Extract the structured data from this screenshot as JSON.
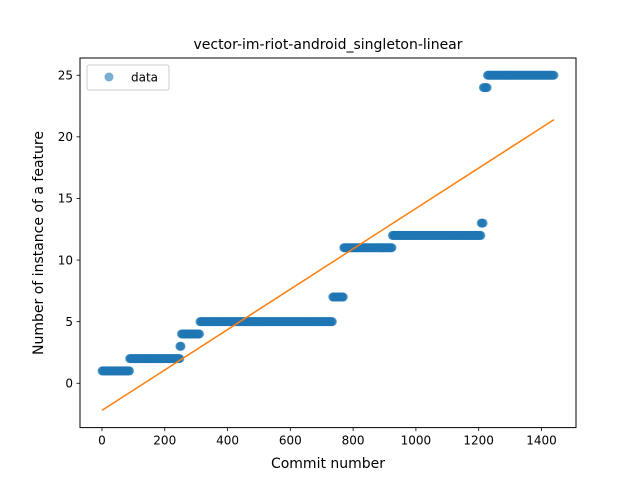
{
  "chart_data": {
    "type": "scatter",
    "title": "vector-im-riot-android_singleton-linear",
    "xlabel": "Commit number",
    "ylabel": "Number of instance of a feature",
    "xlim": [
      -70,
      1510
    ],
    "ylim": [
      -3.6,
      26.4
    ],
    "xticks": [
      0,
      200,
      400,
      600,
      800,
      1000,
      1200,
      1400
    ],
    "yticks": [
      0,
      5,
      10,
      15,
      20,
      25
    ],
    "grid": false,
    "legend": {
      "position": "upper-left",
      "entries": [
        "data"
      ]
    },
    "colors": {
      "data": "#1f77b4",
      "fit": "#ff7f0e",
      "axes": "#000000"
    },
    "series": [
      {
        "name": "data",
        "kind": "scatter",
        "runs": [
          {
            "y": 1,
            "x_start": 0,
            "x_end": 88
          },
          {
            "y": 2,
            "x_start": 88,
            "x_end": 248
          },
          {
            "y": 3,
            "x_start": 248,
            "x_end": 253
          },
          {
            "y": 4,
            "x_start": 253,
            "x_end": 312
          },
          {
            "y": 5,
            "x_start": 312,
            "x_end": 735
          },
          {
            "y": 7,
            "x_start": 735,
            "x_end": 770
          },
          {
            "y": 11,
            "x_start": 770,
            "x_end": 925
          },
          {
            "y": 12,
            "x_start": 925,
            "x_end": 1208
          },
          {
            "y": 13,
            "x_start": 1208,
            "x_end": 1215
          },
          {
            "y": 24,
            "x_start": 1215,
            "x_end": 1228
          },
          {
            "y": 25,
            "x_start": 1228,
            "x_end": 1440
          }
        ]
      },
      {
        "kind": "line",
        "x": [
          0,
          1440
        ],
        "y": [
          -2.2,
          21.4
        ]
      }
    ]
  }
}
